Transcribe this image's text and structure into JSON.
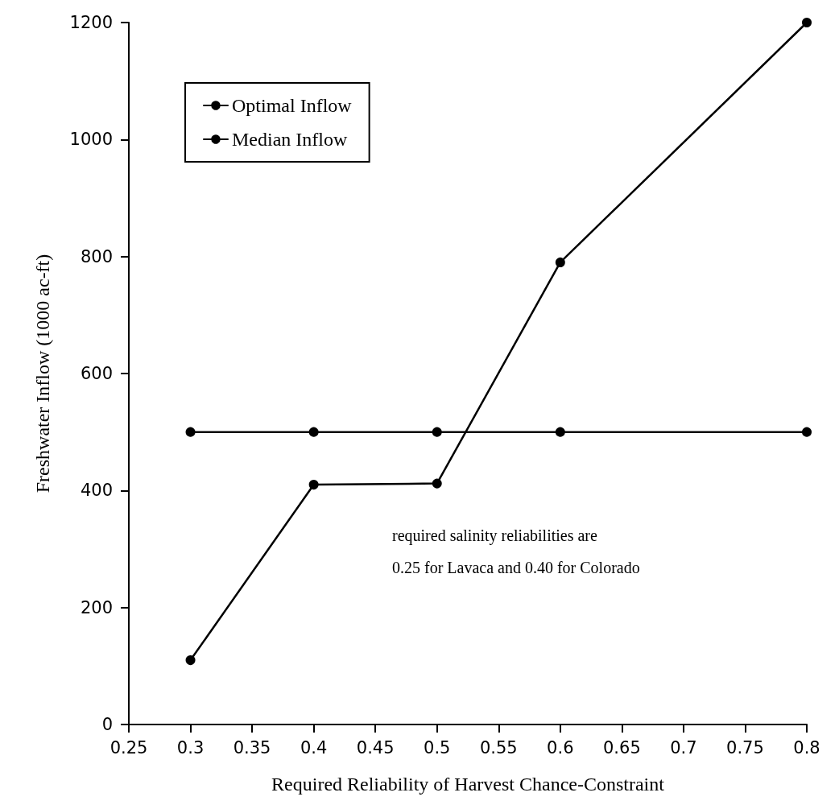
{
  "chart_data": {
    "type": "line",
    "xlabel": "Required Reliability of Harvest Chance-Constraint",
    "ylabel": "Freshwater Inflow (1000 ac-ft)",
    "x": [
      0.3,
      0.4,
      0.5,
      0.6,
      0.8
    ],
    "series": [
      {
        "name": "Optimal Inflow",
        "color": "#000000",
        "values": [
          110,
          410,
          412,
          790,
          1200
        ]
      },
      {
        "name": "Median Inflow",
        "color": "#000000",
        "values": [
          500,
          500,
          500,
          500,
          500
        ]
      }
    ],
    "xlim": [
      0.25,
      0.8
    ],
    "xticks": [
      0.25,
      0.3,
      0.35,
      0.4,
      0.45,
      0.5,
      0.55,
      0.6,
      0.65,
      0.7,
      0.75,
      0.8
    ],
    "ylim": [
      0,
      1200
    ],
    "yticks": [
      0,
      200,
      400,
      600,
      800,
      1000,
      1200
    ],
    "annotations": [
      "required salinity reliabilities are",
      "0.25 for Lavaca and 0.40 for Colorado"
    ],
    "grid": false,
    "legend": "top left",
    "marker": "circle",
    "line_style": "solid"
  }
}
